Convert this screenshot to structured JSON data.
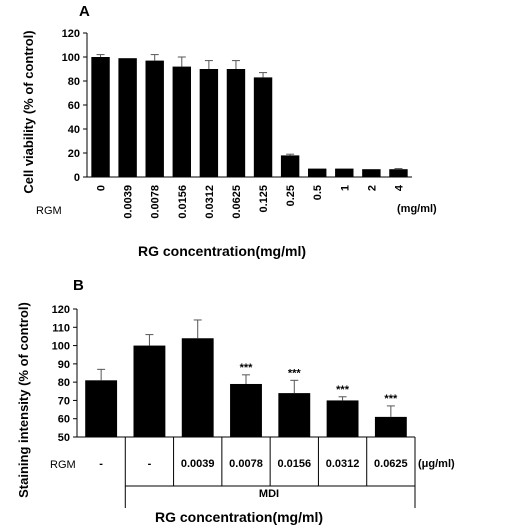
{
  "chart_data": [
    {
      "type": "bar",
      "panel_label": "A",
      "ylabel": "Cell viability (% of control)",
      "xlabel": "RG concentration(mg/ml)",
      "row_label": "RGM",
      "unit_label": "(mg/ml)",
      "ylim": [
        0,
        120
      ],
      "yticks": [
        "0",
        "20",
        "40",
        "60",
        "80",
        "100",
        "120"
      ],
      "categories": [
        "0",
        "0.0039",
        "0.0078",
        "0.0156",
        "0.0312",
        "0.0625",
        "0.125",
        "0.25",
        "0.5",
        "1",
        "2",
        "4"
      ],
      "values": [
        100,
        99,
        97,
        92,
        90,
        90,
        83,
        18,
        7,
        7,
        6.5,
        6.5
      ],
      "errors": [
        2,
        0,
        5,
        8,
        7,
        7,
        4,
        1,
        0,
        0,
        0,
        0.5
      ]
    },
    {
      "type": "bar",
      "panel_label": "B",
      "ylabel": "Staining intensity (% of control)",
      "xlabel": "RG concentration(mg/ml)",
      "row_label": "RGM",
      "unit_label": "(μg/ml)",
      "group_label": "MDI",
      "ylim": [
        50,
        120
      ],
      "yticks": [
        "50",
        "60",
        "70",
        "80",
        "90",
        "100",
        "110",
        "120"
      ],
      "categories": [
        "-",
        "-",
        "0.0039",
        "0.0078",
        "0.0156",
        "0.0312",
        "0.0625"
      ],
      "values": [
        81,
        100,
        104,
        79,
        74,
        70,
        61
      ],
      "errors": [
        6,
        6,
        10,
        5,
        7,
        2,
        6
      ],
      "annotations": [
        "",
        "",
        "",
        "***",
        "***",
        "***",
        "***"
      ]
    }
  ]
}
